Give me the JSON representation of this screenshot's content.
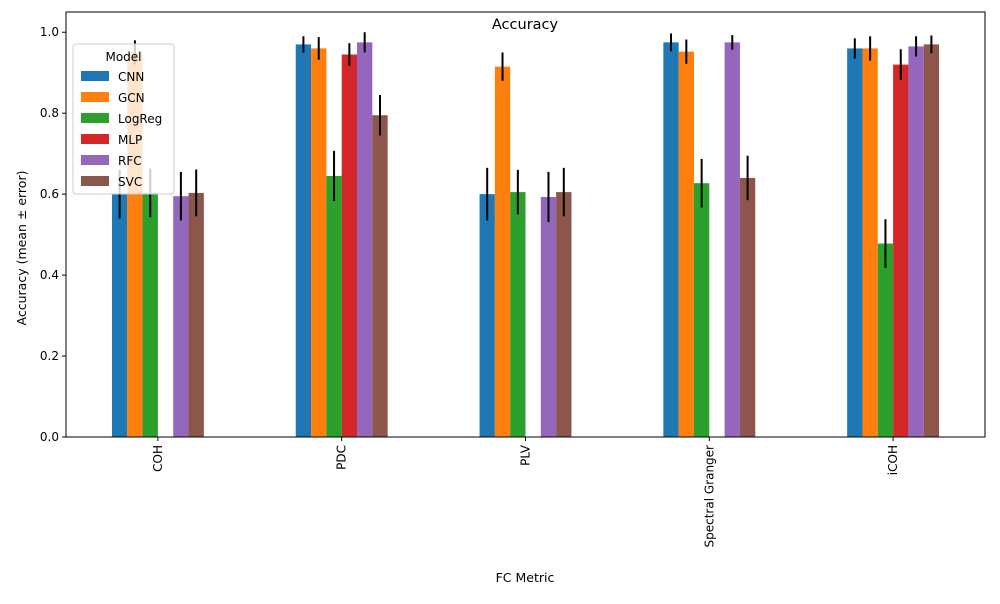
{
  "chart_data": {
    "type": "bar",
    "title": "Accuracy",
    "xlabel": "FC Metric",
    "ylabel": "Accuracy (mean ± error)",
    "ylim": [
      0,
      1.05
    ],
    "yticks": [
      0.0,
      0.2,
      0.4,
      0.6,
      0.8,
      1.0
    ],
    "ytick_labels": [
      "0.0",
      "0.2",
      "0.4",
      "0.6",
      "0.8",
      "1.0"
    ],
    "categories": [
      "COH",
      "PDC",
      "PLV",
      "Spectral Granger",
      "iCOH"
    ],
    "grid": false,
    "legend": {
      "title": "Model",
      "position": "top-left"
    },
    "series": [
      {
        "name": "CNN",
        "color": "#1f77b4",
        "values": [
          0.6,
          0.97,
          0.6,
          0.975,
          0.96
        ],
        "errors": [
          0.06,
          0.02,
          0.065,
          0.022,
          0.025
        ]
      },
      {
        "name": "GCN",
        "color": "#ff7f0e",
        "values": [
          0.95,
          0.96,
          0.915,
          0.952,
          0.96
        ],
        "errors": [
          0.03,
          0.028,
          0.035,
          0.03,
          0.03
        ]
      },
      {
        "name": "LogReg",
        "color": "#2ca02c",
        "values": [
          0.603,
          0.645,
          0.605,
          0.627,
          0.478
        ],
        "errors": [
          0.06,
          0.062,
          0.055,
          0.06,
          0.06
        ]
      },
      {
        "name": "MLP",
        "color": "#d62728",
        "values": [
          null,
          0.945,
          null,
          null,
          0.92
        ],
        "errors": [
          null,
          0.028,
          null,
          null,
          0.038
        ]
      },
      {
        "name": "RFC",
        "color": "#9467bd",
        "values": [
          0.595,
          0.975,
          0.593,
          0.975,
          0.965
        ],
        "errors": [
          0.06,
          0.025,
          0.062,
          0.018,
          0.025
        ]
      },
      {
        "name": "SVC",
        "color": "#8c564b",
        "values": [
          0.603,
          0.795,
          0.605,
          0.64,
          0.97
        ],
        "errors": [
          0.058,
          0.05,
          0.06,
          0.055,
          0.022
        ]
      }
    ]
  }
}
